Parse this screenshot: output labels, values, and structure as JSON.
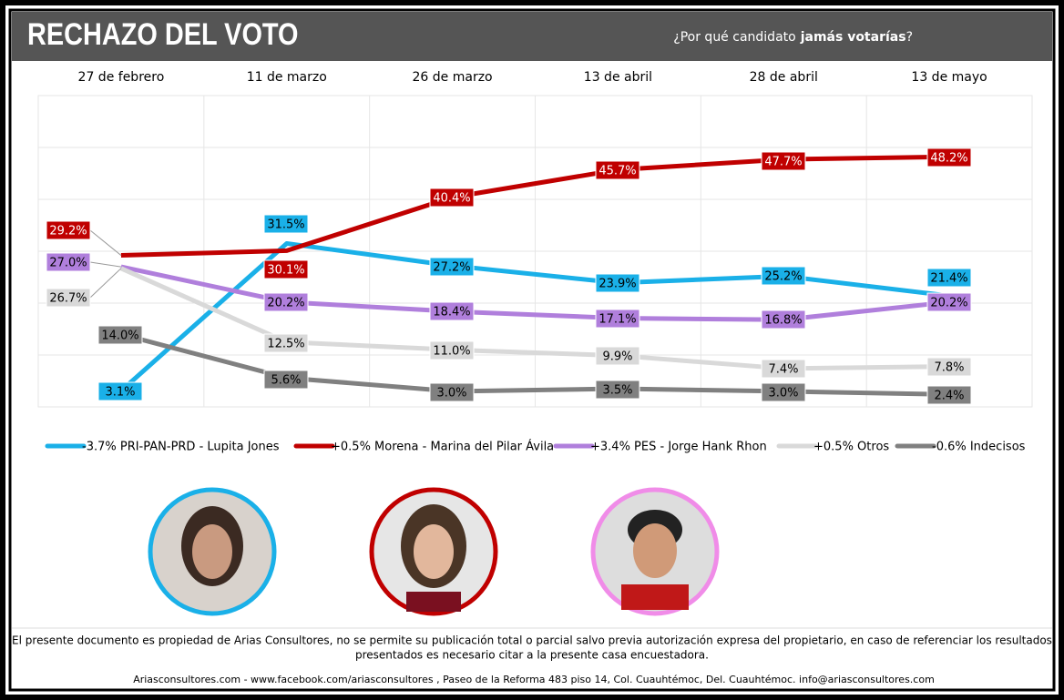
{
  "chart_data": {
    "type": "line",
    "title": "RECHAZO DEL VOTO",
    "subtitle": [
      "¿Por qué candidato",
      "jamás votarías",
      "?"
    ],
    "categories": [
      "27 de febrero",
      "11 de marzo",
      "26 de marzo",
      "13 de abril",
      "28 de abril",
      "13 de mayo"
    ],
    "ylim": [
      0,
      60
    ],
    "yticks": [
      0,
      10,
      20,
      30,
      40,
      50,
      60
    ],
    "grid": true,
    "series": [
      {
        "name": "-3.7% PRI-PAN-PRD - Lupita Jones",
        "color": "#1ab0e8",
        "values": [
          3.1,
          31.5,
          27.2,
          23.9,
          25.2,
          21.4
        ],
        "value_labels": [
          "3.1%",
          "31.5%",
          "27.2%",
          "23.9%",
          "25.2%",
          "21.4%"
        ]
      },
      {
        "name": "+0.5% Morena - Marina del Pilar Ávila",
        "color": "#c00000",
        "values": [
          29.2,
          30.1,
          40.4,
          45.7,
          47.7,
          48.2
        ],
        "value_labels": [
          "29.2%",
          "30.1%",
          "40.4%",
          "45.7%",
          "47.7%",
          "48.2%"
        ]
      },
      {
        "name": "+3.4% PES - Jorge Hank Rhon",
        "color": "#b07fdc",
        "values": [
          27.0,
          20.2,
          18.4,
          17.1,
          16.8,
          20.2
        ],
        "value_labels": [
          "27.0%",
          "20.2%",
          "18.4%",
          "17.1%",
          "16.8%",
          "20.2%"
        ]
      },
      {
        "name": "+0.5% Otros",
        "color": "#d9d9d9",
        "values": [
          26.7,
          12.5,
          11.0,
          9.9,
          7.4,
          7.8
        ],
        "value_labels": [
          "26.7%",
          "12.5%",
          "11.0%",
          "9.9%",
          "7.4%",
          "7.8%"
        ]
      },
      {
        "name": "-0.6% Indecisos",
        "color": "#808080",
        "values": [
          14.0,
          5.6,
          3.0,
          3.5,
          3.0,
          2.4
        ],
        "value_labels": [
          "14.0%",
          "5.6%",
          "3.0%",
          "3.5%",
          "3.0%",
          "2.4%"
        ]
      }
    ]
  },
  "footer": {
    "disclaimer": [
      "El presente documento es propiedad de Arias Consultores, no se permite su publicación total o parcial salvo previa autorización expresa del propietario, en caso de referenciar los resultados",
      "presentados es necesario citar a la presente casa encuestadora."
    ],
    "contact": "Ariasconsultores.com -   www.facebook.com/ariasconsultores , Paseo de la Reforma 483 piso 14, Col. Cuauhtémoc, Del. Cuauhtémoc. info@ariasconsultores.com"
  }
}
